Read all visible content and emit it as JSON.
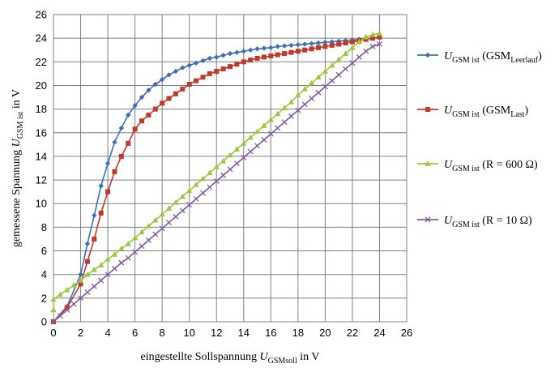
{
  "chart_data": {
    "type": "line",
    "grid": true,
    "legend_position": "right",
    "xlim": [
      0,
      26
    ],
    "ylim": [
      0,
      26
    ],
    "xticks": [
      "0",
      "2",
      "4",
      "6",
      "8",
      "10",
      "12",
      "14",
      "16",
      "18",
      "20",
      "22",
      "24",
      "26"
    ],
    "yticks": [
      "0",
      "2",
      "4",
      "6",
      "8",
      "10",
      "12",
      "14",
      "16",
      "18",
      "20",
      "22",
      "24",
      "26"
    ],
    "xlabel": {
      "pre": "eingestellte Sollspannung ",
      "var": "U",
      "sub": "GSMsoll",
      "post": " in V"
    },
    "ylabel": {
      "pre": "gemessene Spannung ",
      "var": "U",
      "sub": "GSM ist",
      "post": " in V"
    },
    "series": [
      {
        "name": "U GSM ist (GSM Leerlauf)",
        "legend": {
          "var": "U",
          "sub": "GSM ist",
          "mid": " (GSM",
          "sub2": "Leerlauf",
          "post": ")"
        },
        "color": "#3B6FB6",
        "marker": "diamond",
        "x": [
          0,
          1,
          2,
          2.5,
          3,
          3.5,
          4,
          4.5,
          5,
          5.5,
          6,
          6.5,
          7,
          7.5,
          8,
          8.5,
          9,
          9.5,
          10,
          10.5,
          11,
          11.5,
          12,
          12.5,
          13,
          13.5,
          14,
          14.5,
          15,
          15.5,
          16,
          16.5,
          17,
          17.5,
          18,
          18.5,
          19,
          19.5,
          20,
          20.5,
          21,
          21.5,
          22,
          22.5,
          23,
          23.5,
          24
        ],
        "y": [
          0,
          1.3,
          4.0,
          6.6,
          9.0,
          11.5,
          13.4,
          15.2,
          16.4,
          17.5,
          18.3,
          19.0,
          19.6,
          20.1,
          20.5,
          20.9,
          21.2,
          21.5,
          21.7,
          21.9,
          22.1,
          22.3,
          22.4,
          22.55,
          22.7,
          22.8,
          22.9,
          23.0,
          23.1,
          23.15,
          23.2,
          23.3,
          23.35,
          23.4,
          23.45,
          23.5,
          23.55,
          23.6,
          23.65,
          23.7,
          23.75,
          23.8,
          23.85,
          23.9,
          23.95,
          24.0,
          24.05
        ]
      },
      {
        "name": "U GSM ist (GSM Last)",
        "legend": {
          "var": "U",
          "sub": "GSM ist",
          "mid": " (GSM",
          "sub2": "Last",
          "post": ")"
        },
        "color": "#C0392B",
        "marker": "square",
        "x": [
          0,
          1,
          2,
          2.5,
          3,
          3.5,
          4,
          4.5,
          5,
          5.5,
          6,
          6.5,
          7,
          7.5,
          8,
          8.5,
          9,
          9.5,
          10,
          10.5,
          11,
          11.5,
          12,
          12.5,
          13,
          13.5,
          14,
          14.5,
          15,
          15.5,
          16,
          16.5,
          17,
          17.5,
          18,
          18.5,
          19,
          19.5,
          20,
          20.5,
          21,
          21.5,
          22,
          22.5,
          23,
          23.5,
          24
        ],
        "y": [
          0,
          1.2,
          3.2,
          5.1,
          7.0,
          9.2,
          11.0,
          12.7,
          14.0,
          15.1,
          16.3,
          17.0,
          17.5,
          18.0,
          18.5,
          18.9,
          19.3,
          19.7,
          20.1,
          20.4,
          20.7,
          21.0,
          21.2,
          21.4,
          21.6,
          21.8,
          22.0,
          22.15,
          22.3,
          22.4,
          22.5,
          22.6,
          22.7,
          22.8,
          22.9,
          23.0,
          23.1,
          23.2,
          23.3,
          23.4,
          23.5,
          23.6,
          23.7,
          23.8,
          23.9,
          24.0,
          24.1
        ]
      },
      {
        "name": "U GSM ist (R = 600 Ω)",
        "legend": {
          "var": "U",
          "sub": "GSM ist",
          "mid": " (R = 600 Ω)",
          "sub2": "",
          "post": ""
        },
        "color": "#9BC83C",
        "marker": "triangle",
        "x": [
          0,
          0,
          0.5,
          1,
          1.5,
          2,
          2.5,
          3,
          3.5,
          4,
          4.5,
          5,
          5.5,
          6,
          6.5,
          7,
          7.5,
          8,
          8.5,
          9,
          9.5,
          10,
          10.5,
          11,
          11.5,
          12,
          12.5,
          13,
          13.5,
          14,
          14.5,
          15,
          15.5,
          16,
          16.5,
          17,
          17.5,
          18,
          18.5,
          19,
          19.5,
          20,
          20.5,
          21,
          21.5,
          22,
          22.5,
          23,
          23.5,
          24
        ],
        "y": [
          1.0,
          1.9,
          2.3,
          2.7,
          3.1,
          3.5,
          4.0,
          4.4,
          4.8,
          5.3,
          5.7,
          6.2,
          6.6,
          7.1,
          7.6,
          8.1,
          8.6,
          9.1,
          9.6,
          10.1,
          10.6,
          11.1,
          11.6,
          12.1,
          12.6,
          13.1,
          13.6,
          14.1,
          14.6,
          15.1,
          15.6,
          16.1,
          16.6,
          17.1,
          17.6,
          18.1,
          18.6,
          19.2,
          19.7,
          20.2,
          20.7,
          21.2,
          21.7,
          22.2,
          22.7,
          23.2,
          23.7,
          24.1,
          24.3,
          24.4
        ]
      },
      {
        "name": "U GSM ist (R = 10 Ω)",
        "legend": {
          "var": "U",
          "sub": "GSM ist",
          "mid": " (R = 10 Ω)",
          "sub2": "",
          "post": ""
        },
        "color": "#7F5BA6",
        "marker": "x",
        "x": [
          0,
          0.5,
          1,
          1.5,
          2,
          2.5,
          3,
          3.5,
          4,
          4.5,
          5,
          5.5,
          6,
          6.5,
          7,
          7.5,
          8,
          8.5,
          9,
          9.5,
          10,
          10.5,
          11,
          11.5,
          12,
          12.5,
          13,
          13.5,
          14,
          14.5,
          15,
          15.5,
          16,
          16.5,
          17,
          17.5,
          18,
          18.5,
          19,
          19.5,
          20,
          20.5,
          21,
          21.5,
          22,
          22.5,
          23,
          23.5,
          24
        ],
        "y": [
          0,
          0.5,
          1.0,
          1.5,
          2.0,
          2.5,
          3.0,
          3.5,
          4.0,
          4.5,
          5.0,
          5.4,
          5.9,
          6.4,
          6.9,
          7.4,
          7.9,
          8.4,
          8.9,
          9.4,
          9.9,
          10.4,
          10.9,
          11.4,
          11.9,
          12.4,
          12.9,
          13.4,
          13.9,
          14.4,
          14.9,
          15.4,
          15.9,
          16.4,
          16.9,
          17.4,
          17.9,
          18.4,
          18.9,
          19.4,
          19.9,
          20.4,
          20.9,
          21.4,
          21.9,
          22.4,
          22.9,
          23.3,
          23.5
        ]
      }
    ]
  }
}
